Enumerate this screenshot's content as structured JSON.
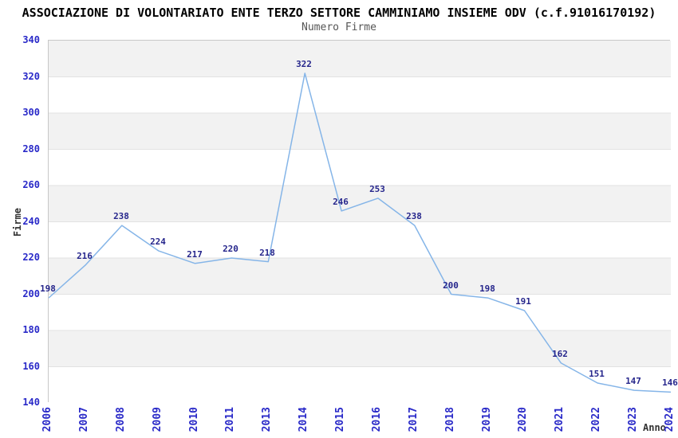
{
  "chart_data": {
    "type": "line",
    "title": "ASSOCIAZIONE DI VOLONTARIATO ENTE TERZO SETTORE CAMMINIAMO INSIEME ODV (c.f.91016170192)",
    "subtitle": "Numero Firme",
    "xlabel": "Anno",
    "ylabel": "Firme",
    "categories": [
      "2006",
      "2007",
      "2008",
      "2009",
      "2010",
      "2011",
      "2013",
      "2014",
      "2015",
      "2016",
      "2017",
      "2018",
      "2019",
      "2020",
      "2021",
      "2022",
      "2023",
      "2024"
    ],
    "values": [
      198,
      216,
      238,
      224,
      217,
      220,
      218,
      322,
      246,
      253,
      238,
      200,
      198,
      191,
      162,
      151,
      147,
      146
    ],
    "yticks": [
      340,
      320,
      300,
      280,
      260,
      240,
      220,
      200,
      180,
      160,
      140
    ],
    "ylim": [
      140,
      340
    ],
    "ytick_step": 20,
    "grid": "horizontal-bands",
    "legend": "none",
    "show_value_labels": true,
    "colors": {
      "line": "#85b5e8",
      "value_label": "#26268c",
      "tick_label": "#2929c8",
      "axis_label": "#333333",
      "title": "#000000",
      "subtitle": "#555555",
      "band_fill": "#f2f2f2",
      "band_alt": "#ffffff",
      "gridline": "#e2e2e2",
      "plot_border": "#c8c8c8",
      "background": "#ffffff"
    }
  }
}
